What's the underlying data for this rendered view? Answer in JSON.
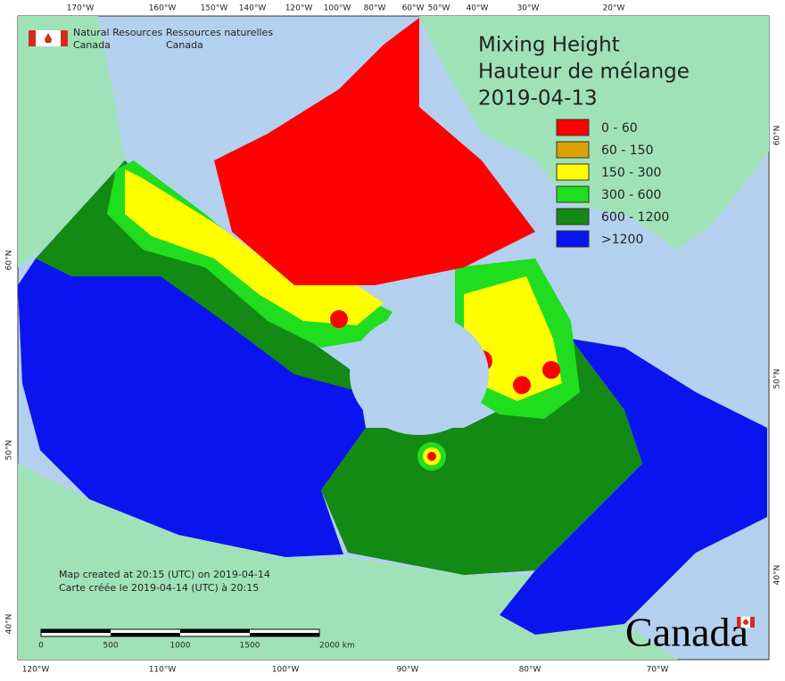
{
  "header": {
    "department_en": [
      "Natural Resources",
      "Canada"
    ],
    "department_fr": [
      "Ressources naturelles",
      "Canada"
    ]
  },
  "title": [
    "Mixing Height",
    "Hauteur de mélange",
    "2019-04-13"
  ],
  "legend": [
    {
      "label": "0 - 60",
      "color": "#ff0000"
    },
    {
      "label": "60 - 150",
      "color": "#dca000"
    },
    {
      "label": "150 - 300",
      "color": "#ffff00"
    },
    {
      "label": "300 - 600",
      "color": "#20dd20"
    },
    {
      "label": "600 - 1200",
      "color": "#138a13"
    },
    {
      "label": ">1200",
      "color": "#0a14ee"
    }
  ],
  "notes": [
    "Map created at 20:15 (UTC) on 2019-04-14",
    "Carte créée le 2019-04-14 (UTC) à 20:15"
  ],
  "scale_bar": [
    "0",
    "500",
    "1000",
    "1500",
    "2000  km"
  ],
  "graticule": {
    "top": [
      "170°W",
      "160°W",
      "150°W",
      "140°W",
      "120°W",
      "100°W",
      "80°W",
      "60°W",
      "50°W",
      "40°W",
      "30°W",
      "20°W"
    ],
    "bottom": [
      "120°W",
      "110°W",
      "100°W",
      "90°W",
      "80°W",
      "70°W"
    ],
    "left": [
      "60°N",
      "50°N",
      "40°N"
    ],
    "right": [
      "60°N",
      "50°N",
      "40°N"
    ]
  },
  "wordmark": "Canada"
}
